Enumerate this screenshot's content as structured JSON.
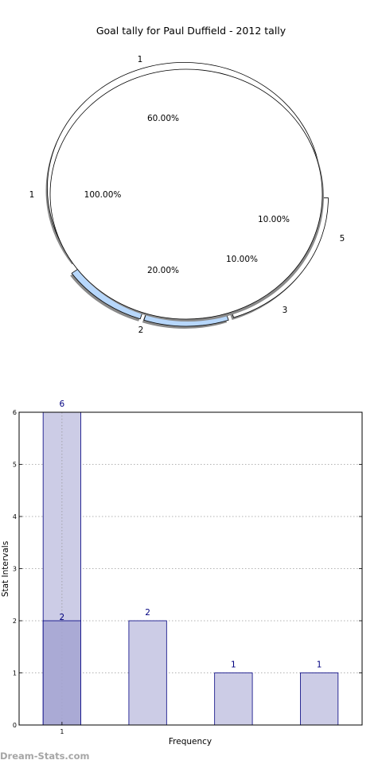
{
  "chart_data": [
    {
      "type": "pie",
      "title": "Goal tally for Paul Duffield - 2012 tally",
      "inner_ring": {
        "slices": [
          {
            "label": "1",
            "value": 100,
            "pct_text": "100.00%",
            "color": "#ffffff"
          }
        ]
      },
      "outer_ring": {
        "slices": [
          {
            "label": "1",
            "value": 60,
            "pct_text": "60.00%",
            "color": "#ffffff"
          },
          {
            "label": "5",
            "value": 10,
            "pct_text": "10.00%",
            "color": "#b7d7fb"
          },
          {
            "label": "3",
            "value": 10,
            "pct_text": "10.00%",
            "color": "#b7d7fb"
          },
          {
            "label": "2",
            "value": 20,
            "pct_text": "20.00%",
            "color": "#ffffff"
          }
        ]
      }
    },
    {
      "type": "bar",
      "xlabel": "Frequency",
      "ylabel": "Stat Intervals",
      "ylim": [
        0,
        6
      ],
      "yticks": [
        "0",
        "1",
        "2",
        "3",
        "4",
        "5",
        "6"
      ],
      "categories": [
        "1",
        "",
        "",
        ""
      ],
      "values": [
        6,
        2,
        1,
        1
      ],
      "value_labels": [
        "6",
        "2",
        "1",
        "1"
      ],
      "overlay": {
        "index": 0,
        "value": 2,
        "label": "2"
      },
      "grid": true,
      "colors": {
        "bar": "#cccce6",
        "overlay": "#a3a3d1",
        "edge": "#000080"
      }
    }
  ],
  "watermark": "Dream-Stats.com"
}
